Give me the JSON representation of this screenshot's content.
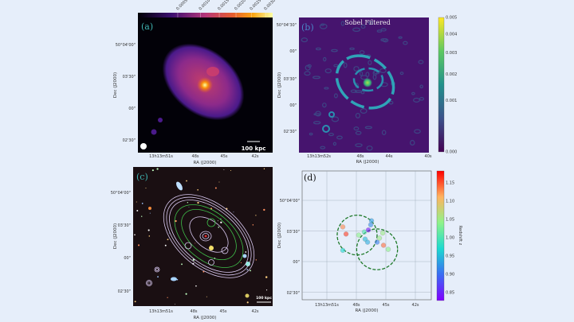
{
  "panels": {
    "a": {
      "label": "(a)",
      "colormap": "inferno",
      "colorbar": {
        "position": "top",
        "ticks": [
          "0.0005",
          "0.0010",
          "0.0015",
          "0.0020",
          "0.0025",
          "0.0030"
        ],
        "vmax": 0.00326
      },
      "scalebar": "100 kpc",
      "xlabel": "RA (J2000)",
      "ylabel": "Dec (J2000)",
      "xticks": [
        "13h13m51s",
        "48s",
        "45s",
        "42s"
      ],
      "yticks": [
        "50°04'00\"",
        "03'30\"",
        "00\"",
        "02'30\""
      ]
    },
    "b": {
      "label": "(b)",
      "title": "Sobel Filtered",
      "colormap": "viridis",
      "colorbar": {
        "position": "right",
        "ticks": [
          "0.000",
          "0.001",
          "0.002",
          "0.003",
          "0.004",
          "0.005"
        ],
        "vmax": 0.005
      },
      "xlabel": "RA (J2000)",
      "ylabel": "Dec (J2000)",
      "xticks": [
        "13h13m52s",
        "48s",
        "44s",
        "40s"
      ],
      "yticks": [
        "50°04'30\"",
        "00\"",
        "03'30\"",
        "00\"",
        "02'30\""
      ]
    },
    "c": {
      "label": "(c)",
      "scalebar": "100 kpc",
      "xlabel": "RA (J2000)",
      "ylabel": "Dec (J2000)",
      "xticks": [
        "13h13m51s",
        "48s",
        "45s",
        "42s"
      ],
      "yticks": [
        "50°04'00\"",
        "03'30\"",
        "00\"",
        "02'30\""
      ],
      "contour_colors": [
        "#d8c8f0",
        "#3fbf4a"
      ]
    }
  },
  "chart_data": {
    "type": "scatter",
    "label": "(d)",
    "xlabel": "RA (J2000)",
    "ylabel": "Dec (J2000)",
    "xticks": [
      "13h13m51s",
      "48s",
      "45s",
      "42s"
    ],
    "yticks": [
      "50°04'00\"",
      "03'30\"",
      "00\"",
      "02'30\""
    ],
    "grid": true,
    "colorbar": {
      "label": "Redshift z",
      "colormap": "rainbow",
      "range": [
        0.828,
        1.183
      ],
      "ticks": [
        "0.85",
        "0.90",
        "0.95",
        "1.00",
        "1.05",
        "1.10",
        "1.15"
      ]
    },
    "points": [
      {
        "ra": "13:13:49.38",
        "dec": "+50:03:34",
        "z": 1.13
      },
      {
        "ra": "13:13:49.05",
        "dec": "+50:03:27",
        "z": 1.16
      },
      {
        "ra": "13:13:49.38",
        "dec": "+50:03:11",
        "z": 0.97
      },
      {
        "ra": "13:13:47.76",
        "dec": "+50:03:26",
        "z": 1.04
      },
      {
        "ra": "13:13:47.19",
        "dec": "+50:03:29",
        "z": 1.0
      },
      {
        "ra": "13:13:46.78",
        "dec": "+50:03:31",
        "z": 0.84
      },
      {
        "ra": "13:13:46.54",
        "dec": "+50:03:36",
        "z": 0.92
      },
      {
        "ra": "13:13:46.46",
        "dec": "+50:03:40",
        "z": 0.93
      },
      {
        "ra": "13:13:47.11",
        "dec": "+50:03:22",
        "z": 0.95
      },
      {
        "ra": "13:13:46.86",
        "dec": "+50:03:19",
        "z": 0.94
      },
      {
        "ra": "13:13:45.89",
        "dec": "+50:03:19",
        "z": 0.91
      },
      {
        "ra": "13:13:45.65",
        "dec": "+50:03:23",
        "z": 1.05
      },
      {
        "ra": "13:13:45.32",
        "dec": "+50:03:28",
        "z": 1.05
      },
      {
        "ra": "13:13:45.24",
        "dec": "+50:03:16",
        "z": 1.14
      },
      {
        "ra": "13:13:44.76",
        "dec": "+50:03:12",
        "z": 1.04
      }
    ],
    "circles": [
      {
        "ra": "13:13:47.92",
        "dec": "+50:03:26",
        "radius_arcsec": 19.5,
        "style": "dashed",
        "color": "#1f7a2a"
      },
      {
        "ra": "13:13:45.89",
        "dec": "+50:03:12",
        "radius_arcsec": 20,
        "style": "dashed",
        "color": "#1f7a2a"
      }
    ]
  }
}
